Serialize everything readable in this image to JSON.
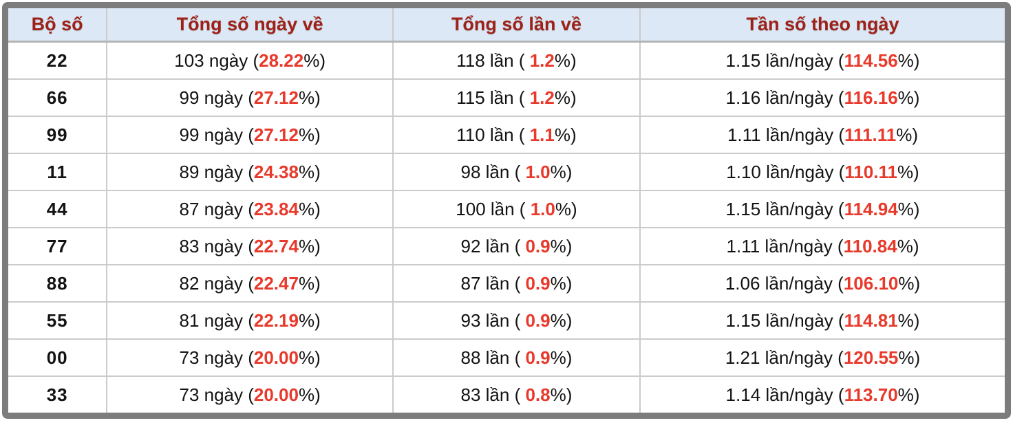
{
  "colors": {
    "frame_gray": "#7c7c7c",
    "header_bg": "#dce8f5",
    "header_text_dark_red": "#9e2118",
    "highlight_red": "#e8392b",
    "grid_line": "#cbcbcb"
  },
  "table": {
    "headers": {
      "pair": "Bộ số",
      "days": "Tổng số ngày về",
      "times": "Tổng số lần về",
      "freq": "Tần số theo ngày"
    },
    "pct_close": "%)",
    "rows": [
      {
        "pair": "22",
        "days_prefix": "103 ngày (",
        "days_pct": "28.22",
        "times_prefix": "118 lần (",
        "times_pct": " 1.2",
        "freq_prefix": "1.15 lần/ngày (",
        "freq_pct": "114.56"
      },
      {
        "pair": "66",
        "days_prefix": "99 ngày (",
        "days_pct": "27.12",
        "times_prefix": "115 lần (",
        "times_pct": " 1.2",
        "freq_prefix": "1.16 lần/ngày (",
        "freq_pct": "116.16"
      },
      {
        "pair": "99",
        "days_prefix": "99 ngày (",
        "days_pct": "27.12",
        "times_prefix": "110 lần (",
        "times_pct": " 1.1",
        "freq_prefix": "1.11 lần/ngày (",
        "freq_pct": "111.11"
      },
      {
        "pair": "11",
        "days_prefix": "89 ngày (",
        "days_pct": "24.38",
        "times_prefix": "98 lần (",
        "times_pct": " 1.0",
        "freq_prefix": "1.10 lần/ngày (",
        "freq_pct": "110.11"
      },
      {
        "pair": "44",
        "days_prefix": "87 ngày (",
        "days_pct": "23.84",
        "times_prefix": "100 lần (",
        "times_pct": " 1.0",
        "freq_prefix": "1.15 lần/ngày (",
        "freq_pct": "114.94"
      },
      {
        "pair": "77",
        "days_prefix": "83 ngày (",
        "days_pct": "22.74",
        "times_prefix": "92 lần (",
        "times_pct": " 0.9",
        "freq_prefix": "1.11 lần/ngày (",
        "freq_pct": "110.84"
      },
      {
        "pair": "88",
        "days_prefix": "82 ngày (",
        "days_pct": "22.47",
        "times_prefix": "87 lần (",
        "times_pct": " 0.9",
        "freq_prefix": "1.06 lần/ngày (",
        "freq_pct": "106.10"
      },
      {
        "pair": "55",
        "days_prefix": "81 ngày (",
        "days_pct": "22.19",
        "times_prefix": "93 lần (",
        "times_pct": " 0.9",
        "freq_prefix": "1.15 lần/ngày (",
        "freq_pct": "114.81"
      },
      {
        "pair": "00",
        "days_prefix": "73 ngày (",
        "days_pct": "20.00",
        "times_prefix": "88 lần (",
        "times_pct": " 0.9",
        "freq_prefix": "1.21 lần/ngày (",
        "freq_pct": "120.55"
      },
      {
        "pair": "33",
        "days_prefix": "73 ngày (",
        "days_pct": "20.00",
        "times_prefix": "83 lần (",
        "times_pct": " 0.8",
        "freq_prefix": "1.14 lần/ngày (",
        "freq_pct": "113.70"
      }
    ]
  }
}
